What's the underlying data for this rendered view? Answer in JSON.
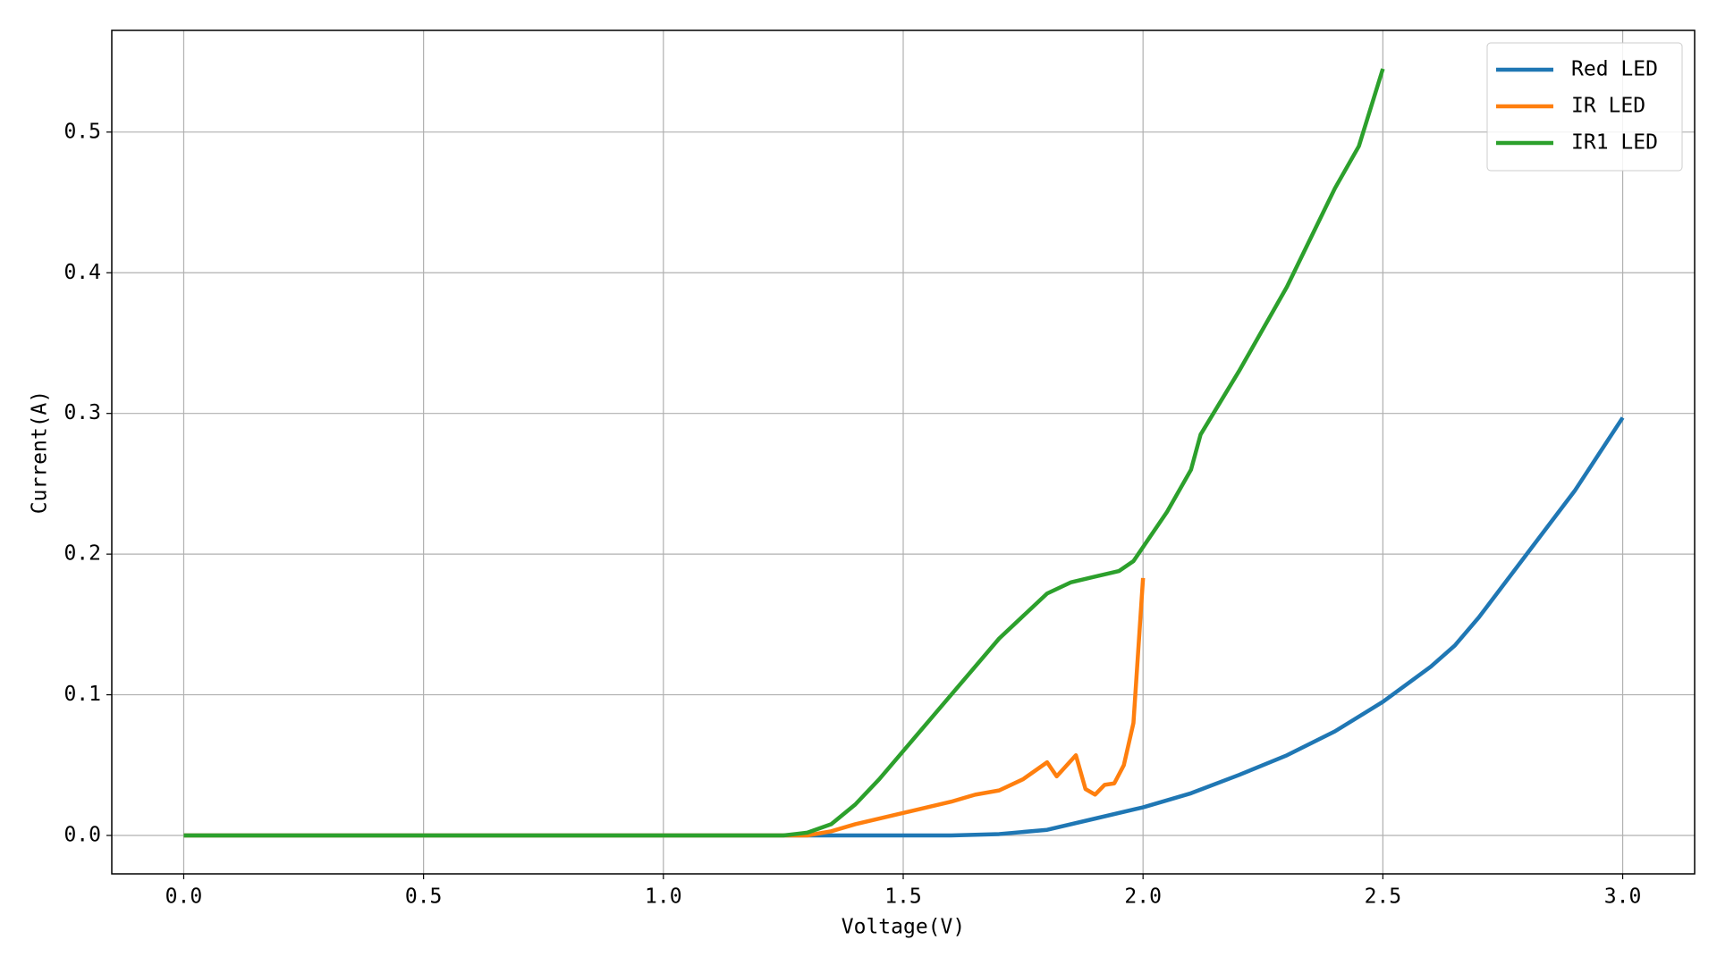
{
  "chart_data": {
    "type": "line",
    "xlabel": "Voltage(V)",
    "ylabel": "Current(A)",
    "xlim": [
      -0.15,
      3.15
    ],
    "ylim": [
      -0.0273,
      0.5723
    ],
    "xticks": [
      {
        "value": 0,
        "label": "0.0"
      },
      0.5,
      {
        "value": 1,
        "label": "1.0"
      },
      1.5,
      {
        "value": 2,
        "label": "2.0"
      },
      2.5,
      {
        "value": 3,
        "label": "3.0"
      }
    ],
    "yticks": [
      {
        "value": 0,
        "label": "0.0"
      },
      0.1,
      0.2,
      0.3,
      0.4,
      0.5
    ],
    "grid": true,
    "legend": "upper right",
    "series": [
      {
        "name": "Red LED",
        "color": "#1f77b4",
        "x": [
          0,
          1.6,
          1.7,
          1.8,
          1.9,
          2.0,
          2.1,
          2.2,
          2.3,
          2.4,
          2.5,
          2.6,
          2.65,
          2.7,
          2.8,
          2.9,
          3.0
        ],
        "values": [
          0,
          0,
          0.001,
          0.004,
          0.012,
          0.02,
          0.03,
          0.043,
          0.057,
          0.074,
          0.095,
          0.12,
          0.135,
          0.155,
          0.2,
          0.245,
          0.297
        ]
      },
      {
        "name": "IR LED",
        "color": "#ff7f0e",
        "x": [
          0,
          1.3,
          1.35,
          1.4,
          1.5,
          1.6,
          1.65,
          1.7,
          1.75,
          1.8,
          1.82,
          1.86,
          1.88,
          1.9,
          1.92,
          1.94,
          1.96,
          1.98,
          2.0
        ],
        "values": [
          0,
          0,
          0.003,
          0.008,
          0.016,
          0.024,
          0.029,
          0.032,
          0.04,
          0.052,
          0.042,
          0.057,
          0.033,
          0.029,
          0.036,
          0.037,
          0.05,
          0.08,
          0.183
        ]
      },
      {
        "name": "IR1 LED",
        "color": "#2ca02c",
        "x": [
          0,
          1.25,
          1.3,
          1.35,
          1.4,
          1.45,
          1.5,
          1.6,
          1.7,
          1.8,
          1.85,
          1.9,
          1.95,
          1.98,
          2.0,
          2.05,
          2.1,
          2.12,
          2.2,
          2.3,
          2.4,
          2.45,
          2.5
        ],
        "values": [
          0,
          0,
          0.002,
          0.008,
          0.022,
          0.04,
          0.06,
          0.1,
          0.14,
          0.172,
          0.18,
          0.184,
          0.188,
          0.195,
          0.205,
          0.23,
          0.26,
          0.285,
          0.33,
          0.39,
          0.46,
          0.49,
          0.545
        ]
      }
    ]
  }
}
